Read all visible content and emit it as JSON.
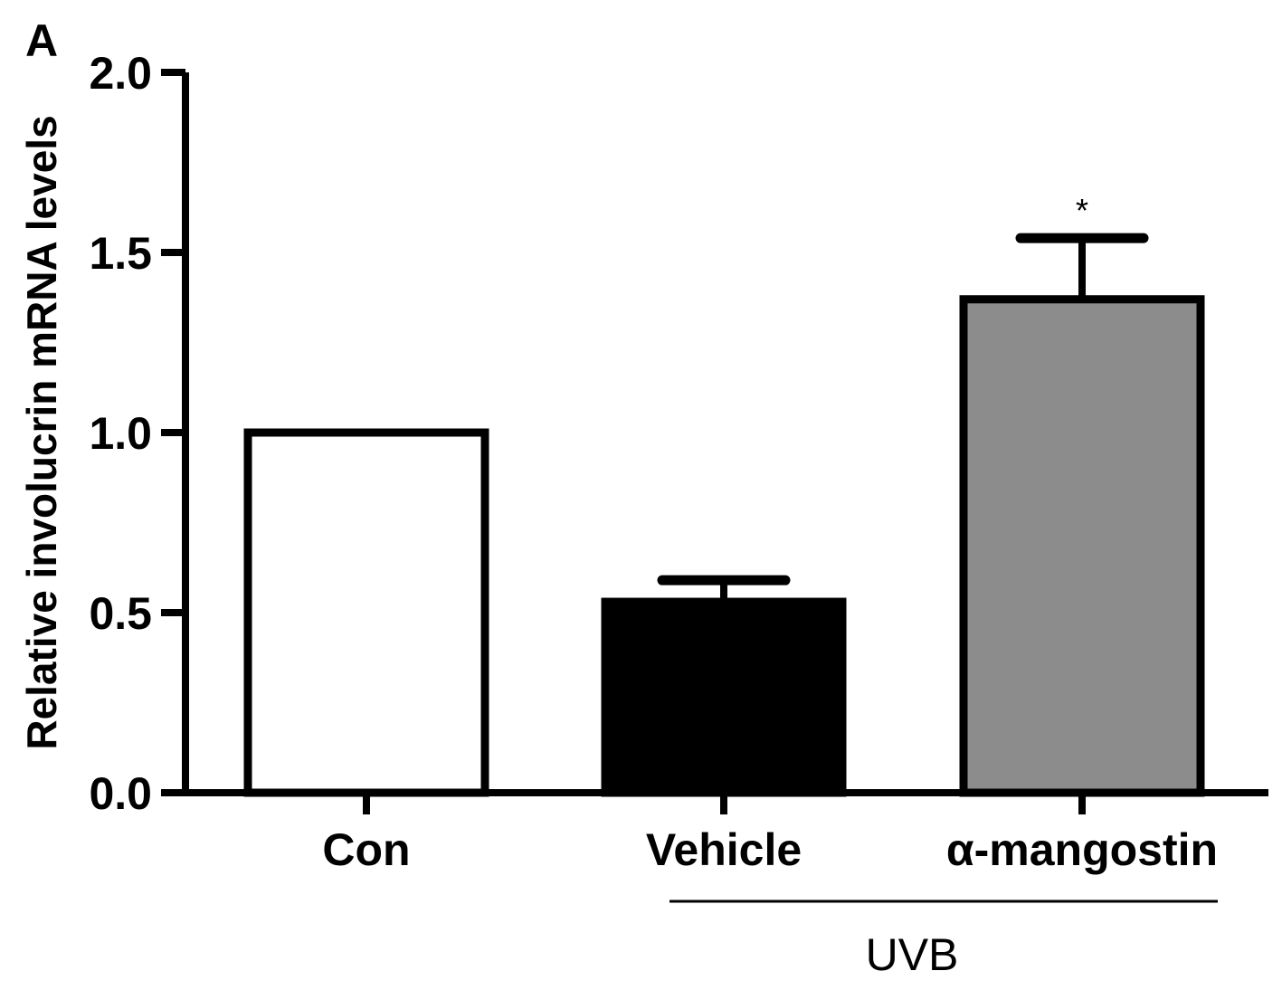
{
  "panel_label": "A",
  "chart_data": {
    "type": "bar",
    "ylabel": "Relative involucrin mRNA levels",
    "ylim": [
      0,
      2.0
    ],
    "yticks": [
      "0.0",
      "0.5",
      "1.0",
      "1.5",
      "2.0"
    ],
    "categories": [
      "Con",
      "Vehicle",
      "α-mangostin"
    ],
    "values": [
      1.0,
      0.53,
      1.37
    ],
    "errors": [
      0,
      0.06,
      0.17
    ],
    "fills": [
      "#ffffff",
      "#000000",
      "#8c8c8c"
    ],
    "significance": [
      "",
      "",
      "*"
    ],
    "group_label": "UVB",
    "group_members": [
      "Vehicle",
      "α-mangostin"
    ]
  }
}
